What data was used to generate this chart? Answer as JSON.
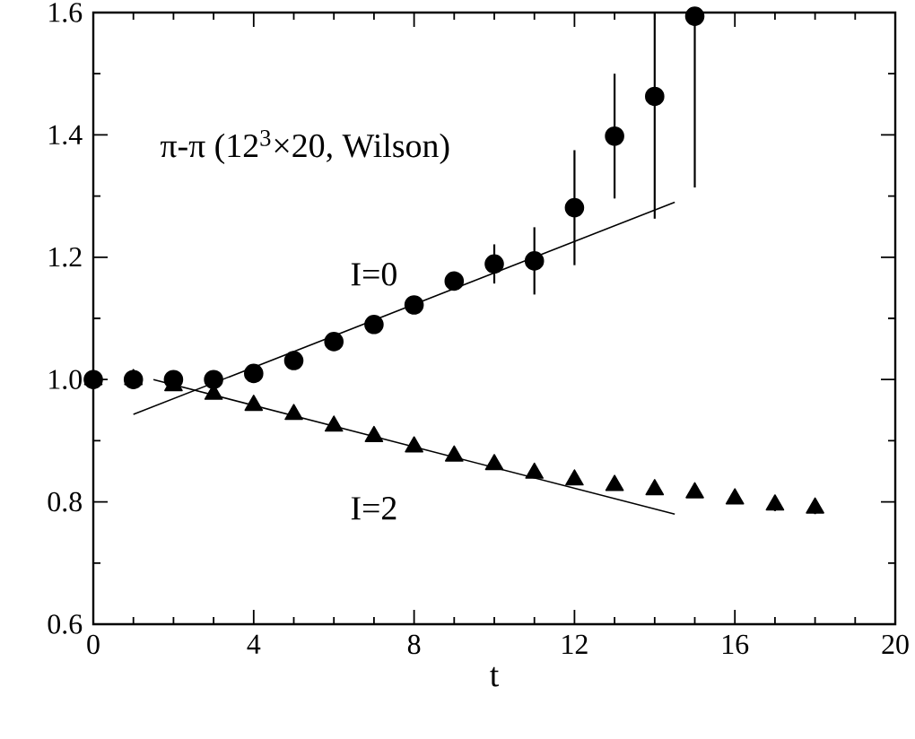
{
  "chart_data": {
    "type": "scatter",
    "xlabel": "t",
    "xlim": [
      0,
      20
    ],
    "xticks": [
      0,
      4,
      8,
      12,
      16,
      20
    ],
    "ylim": [
      0.6,
      1.6
    ],
    "yticks": [
      0.6,
      0.8,
      {
        "value": 1.0,
        "label": "1.0"
      },
      1.2,
      1.4,
      1.6
    ],
    "annotations": [
      "π-π (12$^{3}$×20, Wilson)"
    ],
    "x": [
      0,
      1,
      2,
      3,
      4,
      5,
      6,
      7,
      8,
      9,
      10,
      11,
      12,
      13,
      14,
      15,
      16,
      17,
      18
    ],
    "series": [
      {
        "name": "I=0",
        "color": "#000000",
        "marker": "circle",
        "values": [
          1.0,
          1.0,
          1.0,
          1.0,
          1.01,
          1.031,
          1.062,
          1.09,
          1.122,
          1.161,
          1.189,
          1.194,
          1.281,
          1.398,
          1.463,
          1.594,
          null,
          null,
          null
        ],
        "errors": [
          null,
          null,
          null,
          null,
          null,
          null,
          null,
          null,
          null,
          0.01,
          0.032,
          0.055,
          0.094,
          0.102,
          [
            1.263,
            1.6
          ],
          [
            1.314,
            1.6
          ],
          null,
          null,
          null
        ]
      },
      {
        "name": "I=2",
        "color": "#000000",
        "marker": "triangle",
        "values": [
          1.0,
          1.0,
          0.99,
          0.976,
          0.958,
          0.943,
          0.924,
          0.907,
          0.89,
          0.875,
          0.861,
          0.847,
          0.836,
          0.827,
          0.82,
          0.815,
          0.805,
          0.795,
          0.79
        ],
        "errors": [
          null,
          null,
          null,
          null,
          null,
          null,
          null,
          null,
          null,
          null,
          null,
          null,
          null,
          null,
          null,
          null,
          null,
          0.01,
          0.01
        ]
      },
      {
        "type": "line",
        "color": "#000000",
        "marker": "none",
        "x": [
          1,
          14.5
        ],
        "values": [
          0.943,
          1.29
        ]
      },
      {
        "type": "line",
        "color": "#000000",
        "marker": "none",
        "x": [
          1.5,
          14.5
        ],
        "values": [
          1.0,
          0.78
        ]
      }
    ]
  }
}
